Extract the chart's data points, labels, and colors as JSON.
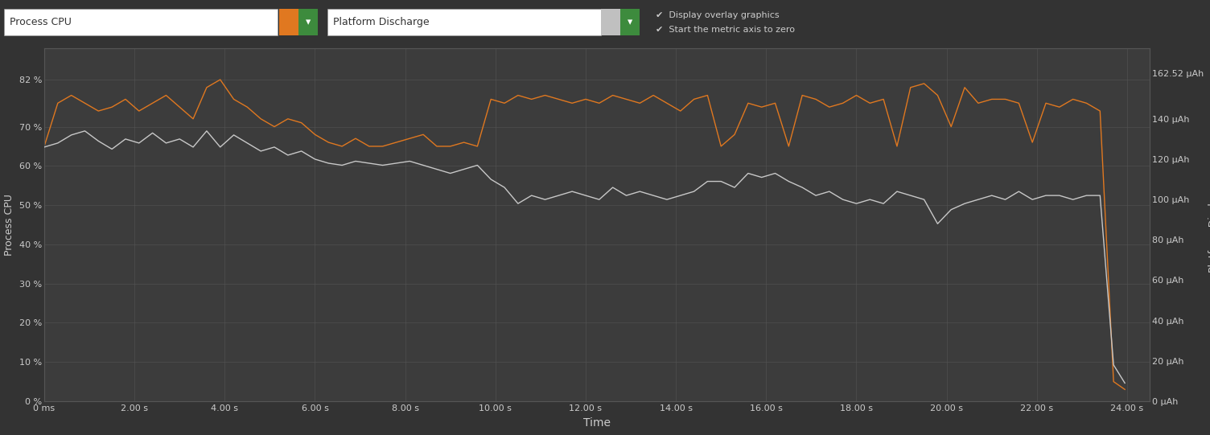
{
  "background_color": "#333333",
  "plot_bg_color": "#3c3c3c",
  "grid_color": "#555555",
  "text_color": "#cccccc",
  "header_bg_color": "#2a2a2a",
  "header_box_color": "#f5f5f5",
  "cpu_color": "#e07820",
  "discharge_color": "#c8c8c8",
  "y_left_label": "Process CPU",
  "y_right_label": "Platform Discharge",
  "x_label": "Time",
  "y_left_ticks": [
    0,
    10,
    20,
    30,
    40,
    50,
    60,
    70,
    82
  ],
  "y_left_tick_labels": [
    "0 %",
    "10 %",
    "20 %",
    "30 %",
    "40 %",
    "50 %",
    "60 %",
    "70 %",
    "82 %"
  ],
  "y_left_max": 90,
  "y_right_ticks": [
    0,
    20,
    40,
    60,
    80,
    100,
    120,
    140,
    162.52
  ],
  "y_right_tick_labels": [
    "0 µAh",
    "20 µAh",
    "40 µAh",
    "60 µAh",
    "80 µAh",
    "100 µAh",
    "120 µAh",
    "140 µAh",
    "162.52 µAh"
  ],
  "y_right_max": 175,
  "x_ticks": [
    0,
    2,
    4,
    6,
    8,
    10,
    12,
    14,
    16,
    18,
    20,
    22,
    24
  ],
  "x_tick_labels": [
    "0 ms",
    "2.00 s",
    "4.00 s",
    "6.00 s",
    "8.00 s",
    "10.00 s",
    "12.00 s",
    "14.00 s",
    "16.00 s",
    "18.00 s",
    "20.00 s",
    "22.00 s",
    "24.00 s"
  ],
  "x_max": 24.5,
  "header_label_cpu": "Process CPU",
  "header_label_discharge": "Platform Discharge",
  "header_check1": "Display overlay graphics",
  "header_check2": "Start the metric axis to zero",
  "cpu_data_x": [
    0.0,
    0.3,
    0.6,
    0.9,
    1.2,
    1.5,
    1.8,
    2.1,
    2.4,
    2.7,
    3.0,
    3.3,
    3.6,
    3.9,
    4.2,
    4.5,
    4.8,
    5.1,
    5.4,
    5.7,
    6.0,
    6.3,
    6.6,
    6.9,
    7.2,
    7.5,
    7.8,
    8.1,
    8.4,
    8.7,
    9.0,
    9.3,
    9.6,
    9.9,
    10.2,
    10.5,
    10.8,
    11.1,
    11.4,
    11.7,
    12.0,
    12.3,
    12.6,
    12.9,
    13.2,
    13.5,
    13.8,
    14.1,
    14.4,
    14.7,
    15.0,
    15.3,
    15.6,
    15.9,
    16.2,
    16.5,
    16.8,
    17.1,
    17.4,
    17.7,
    18.0,
    18.3,
    18.6,
    18.9,
    19.2,
    19.5,
    19.8,
    20.1,
    20.4,
    20.7,
    21.0,
    21.3,
    21.6,
    21.9,
    22.2,
    22.5,
    22.8,
    23.1,
    23.4,
    23.7,
    23.95
  ],
  "cpu_data_y": [
    65,
    76,
    78,
    76,
    74,
    75,
    77,
    74,
    76,
    78,
    75,
    72,
    80,
    82,
    77,
    75,
    72,
    70,
    72,
    71,
    68,
    66,
    65,
    67,
    65,
    65,
    66,
    67,
    68,
    65,
    65,
    66,
    65,
    77,
    76,
    78,
    77,
    78,
    77,
    76,
    77,
    76,
    78,
    77,
    76,
    78,
    76,
    74,
    77,
    78,
    65,
    68,
    76,
    75,
    76,
    65,
    78,
    77,
    75,
    76,
    78,
    76,
    77,
    65,
    80,
    81,
    78,
    70,
    80,
    76,
    77,
    77,
    76,
    66,
    76,
    75,
    77,
    76,
    74,
    5,
    3
  ],
  "discharge_data_x": [
    0.0,
    0.3,
    0.6,
    0.9,
    1.2,
    1.5,
    1.8,
    2.1,
    2.4,
    2.7,
    3.0,
    3.3,
    3.6,
    3.9,
    4.2,
    4.5,
    4.8,
    5.1,
    5.4,
    5.7,
    6.0,
    6.3,
    6.6,
    6.9,
    7.2,
    7.5,
    7.8,
    8.1,
    8.4,
    8.7,
    9.0,
    9.3,
    9.6,
    9.9,
    10.2,
    10.5,
    10.8,
    11.1,
    11.4,
    11.7,
    12.0,
    12.3,
    12.6,
    12.9,
    13.2,
    13.5,
    13.8,
    14.1,
    14.4,
    14.7,
    15.0,
    15.3,
    15.6,
    15.9,
    16.2,
    16.5,
    16.8,
    17.1,
    17.4,
    17.7,
    18.0,
    18.3,
    18.6,
    18.9,
    19.2,
    19.5,
    19.8,
    20.1,
    20.4,
    20.7,
    21.0,
    21.3,
    21.6,
    21.9,
    22.2,
    22.5,
    22.8,
    23.1,
    23.4,
    23.7,
    23.95
  ],
  "discharge_data_y": [
    126,
    128,
    132,
    134,
    129,
    125,
    130,
    128,
    133,
    128,
    130,
    126,
    134,
    126,
    132,
    128,
    124,
    126,
    122,
    124,
    120,
    118,
    117,
    119,
    118,
    117,
    118,
    119,
    117,
    115,
    113,
    115,
    117,
    110,
    106,
    98,
    102,
    100,
    102,
    104,
    102,
    100,
    106,
    102,
    104,
    102,
    100,
    102,
    104,
    109,
    109,
    106,
    113,
    111,
    113,
    109,
    106,
    102,
    104,
    100,
    98,
    100,
    98,
    104,
    102,
    100,
    88,
    95,
    98,
    100,
    102,
    100,
    104,
    100,
    102,
    102,
    100,
    102,
    102,
    18,
    9
  ]
}
